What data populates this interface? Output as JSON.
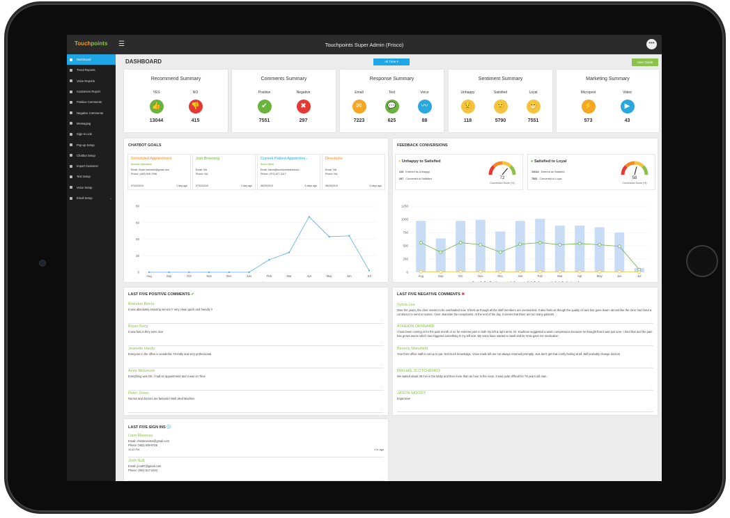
{
  "header": {
    "logo_part1": "Touch",
    "logo_part2": "points",
    "menu_glyph": "☰",
    "title": "Touchpoints Super Admin (Frisco)",
    "avatar_glyph": "•••"
  },
  "sidebar": {
    "items": [
      {
        "label": "Dashboard",
        "icon": "home-icon",
        "active": true
      },
      {
        "label": "Trend Reports",
        "icon": "chart-icon"
      },
      {
        "label": "Voice Reports",
        "icon": "chart-icon"
      },
      {
        "label": "Customers Report",
        "icon": "chart-icon"
      },
      {
        "label": "Positive Comments",
        "icon": "thumbs-up-icon"
      },
      {
        "label": "Negative Comments",
        "icon": "thumbs-down-icon"
      },
      {
        "label": "Messaging",
        "icon": "comment-icon"
      },
      {
        "label": "Sign-in Link",
        "icon": "link-icon"
      },
      {
        "label": "Pop-up Setup",
        "icon": "setup-icon"
      },
      {
        "label": "Chatbot Setup",
        "icon": "chatbot-icon"
      },
      {
        "label": "Import Customer",
        "icon": "upload-icon"
      },
      {
        "label": "Text Setup",
        "icon": "text-icon"
      },
      {
        "label": "Voice Setup",
        "icon": "gear-icon"
      },
      {
        "label": "Email Setup",
        "icon": "email-icon",
        "caret": "⌄"
      }
    ]
  },
  "page": {
    "title": "DASHBOARD",
    "filter_label": "All Time ▾",
    "user_guide_label": "User Guide"
  },
  "summaries": [
    {
      "title": "Recommend Summary",
      "items": [
        {
          "label": "YES",
          "value": "13044",
          "color": "#6ab43e",
          "glyph": "👍"
        },
        {
          "label": "NO",
          "value": "415",
          "color": "#e53935",
          "glyph": "👎"
        }
      ]
    },
    {
      "title": "Comments Summary",
      "items": [
        {
          "label": "Positive",
          "value": "7551",
          "color": "#6ab43e",
          "glyph": "✔"
        },
        {
          "label": "Negative",
          "value": "297",
          "color": "#e53935",
          "glyph": "✖"
        }
      ]
    },
    {
      "title": "Response Summary",
      "items": [
        {
          "label": "Email",
          "value": "7223",
          "color": "#f5a623",
          "glyph": "✉"
        },
        {
          "label": "Text",
          "value": "625",
          "color": "#6ab43e",
          "glyph": "💬"
        },
        {
          "label": "Voice",
          "value": "88",
          "color": "#29a8e0",
          "glyph": "〰"
        }
      ]
    },
    {
      "title": "Sentiment Summary",
      "items": [
        {
          "label": "Unhappy",
          "value": "118",
          "color": "#f5c342",
          "glyph": "😟"
        },
        {
          "label": "Satisfied",
          "value": "5790",
          "color": "#f5c342",
          "glyph": "🙂"
        },
        {
          "label": "Loyal",
          "value": "7551",
          "color": "#f5c342",
          "glyph": "😁"
        }
      ]
    },
    {
      "title": "Marketing Summary",
      "items": [
        {
          "label": "Micropost",
          "value": "573",
          "color": "#f5a623",
          "glyph": "⚡"
        },
        {
          "label": "Video",
          "value": "43",
          "color": "#29a8e0",
          "glyph": "▶"
        }
      ]
    }
  ],
  "chatbot": {
    "title": "CHATBOT GOALS",
    "cards": [
      {
        "title": "Scheduled Appointment",
        "title_color": "#f08a24",
        "name": "Susette Stannard",
        "email": "Email: Susie.stannard@gmail.com",
        "phone": "Phone: (469) 909-7998",
        "date": "07/02/2019",
        "ago": "1 day ago"
      },
      {
        "title": "Just Browsing",
        "title_color": "#6ab43e",
        "name": "",
        "email": "Email: NA",
        "phone": "Phone: NA",
        "date": "07/02/2019",
        "ago": "1 day ago"
      },
      {
        "title": "Current Patient Appointme...",
        "title_color": "#29a8e0",
        "name": "Steve Allen",
        "email": "Email: steve@touchpointstechnolo...",
        "phone": "Phone: (972) 877-3117",
        "date": "06/29/2019",
        "ago": "4 days ago"
      },
      {
        "title": "Directions",
        "title_color": "#f08a24",
        "name": "",
        "email": "Email: NA",
        "phone": "Phone: NA",
        "date": "06/29/2019",
        "ago": "4 days ago"
      }
    ]
  },
  "feedback": {
    "title": "FEEDBACK CONVERSIONS",
    "cards": [
      {
        "title": "Unhappy to Satisfied",
        "line1_num": "415",
        "line1_txt": "Entered as Unhappy",
        "line2_num": "297",
        "line2_txt": "Converted to Satisfied",
        "score": "72",
        "score_label": "Conversion Score (%)",
        "icon_color": "#f5c342"
      },
      {
        "title": "Satisfied to Loyal",
        "line1_num": "13044",
        "line1_txt": "Entered as Satisfied",
        "line2_num": "7551",
        "line2_txt": "Converted to Loyal",
        "score": "58",
        "score_label": "Conversion Score (%)",
        "icon_color": "#6ab43e"
      }
    ]
  },
  "chart_data": [
    {
      "type": "line",
      "categories": [
        "Aug",
        "Sep",
        "Oct",
        "Nov",
        "Dec",
        "Jan",
        "Feb",
        "Mar",
        "Apr",
        "May",
        "Jun",
        "Jul"
      ],
      "series": [
        {
          "name": "Goal",
          "values": [
            0,
            0,
            0,
            0,
            0,
            0,
            15,
            24,
            67,
            43,
            44,
            2
          ],
          "color": "#5aaee8"
        }
      ],
      "yticks": [
        "0",
        "20",
        "40",
        "60",
        "80"
      ],
      "ylim": [
        0,
        80
      ]
    },
    {
      "type": "bar",
      "categories": [
        "Aug",
        "Sep",
        "Oct",
        "Nov",
        "Dec",
        "Jan",
        "Feb",
        "Mar",
        "Apr",
        "May",
        "Jun",
        "Jul"
      ],
      "series": [
        {
          "name": "Provide Feedback",
          "kind": "bar",
          "color": "#c9dcf5",
          "values": [
            970,
            640,
            970,
            990,
            770,
            970,
            1010,
            880,
            880,
            850,
            750,
            80
          ]
        },
        {
          "name": "Unhappy to Satisfied",
          "kind": "line",
          "color": "#f5c342",
          "values": [
            10,
            5,
            10,
            10,
            5,
            10,
            10,
            10,
            10,
            10,
            10,
            5
          ]
        },
        {
          "name": "Satisfied to Loyal",
          "kind": "line",
          "color": "#6ab43e",
          "values": [
            560,
            380,
            560,
            520,
            380,
            530,
            560,
            520,
            540,
            520,
            490,
            50
          ]
        }
      ],
      "yticks": [
        "0",
        "250",
        "500",
        "750",
        "1000",
        "1250"
      ],
      "ylim": [
        0,
        1250
      ]
    }
  ],
  "positive": {
    "title": "LAST FIVE POSITIVE COMMENTS",
    "items": [
      {
        "name": "Brandon Beers",
        "text": "It was absolutely amazing service !! Very clean quick and friendly !!"
      },
      {
        "name": "Bryan Berg",
        "text": "It was fast,in they were nice"
      },
      {
        "name": "Jeanette Hardy",
        "text": "Everyone in the office is wonderful. Friendly and very professional."
      },
      {
        "name": "Anne Mckenzie",
        "text": "Everything was OK. I had an appointment and it was on Time"
      },
      {
        "name": "Peter Jones",
        "text": "Nurses and doctors are fantastic! Well oiled Machine"
      }
    ]
  },
  "negative": {
    "title": "LAST FIVE NEGATIVE COMMENTS",
    "items": [
      {
        "name": "Sylvia Lee",
        "text": "Over the years, the clinic seems to be overloaded now. It feels as though all the staff members are overworked. It also feels as though the quality of care has gone down- almost like the clinic had hired a contractor to send in nurses. I love Jeannine the receptionist. At the end of the day, it seems that there are too many patients ..."
      },
      {
        "name": "ATHEION DENNARD",
        "text": "I have been coming in for the past month or so for extreme pain in both my left & right arms. Dr. Kaufman suggested a warm compression because he thought that it was just sore. I tried that and the pain has grown worse which has triggered something in my left arm. My veins have started to swell and Dr Amie gave me medication"
      },
      {
        "name": "Beverly Mansfield",
        "text": "Your front office staff is not up to par. Not much knowledge. Voice mails left are not always returned promptly. Just don't get that comfy feeling at all. Will probably change doctors"
      },
      {
        "name": "MIKHAIL ZLOTCHENKO",
        "text": "We waited about 30 min in the lobby and then more than an hour in the room. It was quite difficult for 79 years old man."
      },
      {
        "name": "JASON MOODY",
        "text": "Expensive"
      }
    ]
  },
  "signins": {
    "title": "LAST FIVE SIGN INS",
    "items": [
      {
        "name": "Liam Maroney",
        "email": "Email: christinesims@gmail.com",
        "phone": "Phone: (903) 609-9725",
        "time": "10:42 PM",
        "ago": "1 hr ago"
      },
      {
        "name": "Josh Nutt",
        "email": "Email: jcnutt7@gmail.com",
        "phone": "Phone: (903) 517-2342",
        "time": "",
        "ago": ""
      }
    ]
  },
  "ellipsis": "..."
}
